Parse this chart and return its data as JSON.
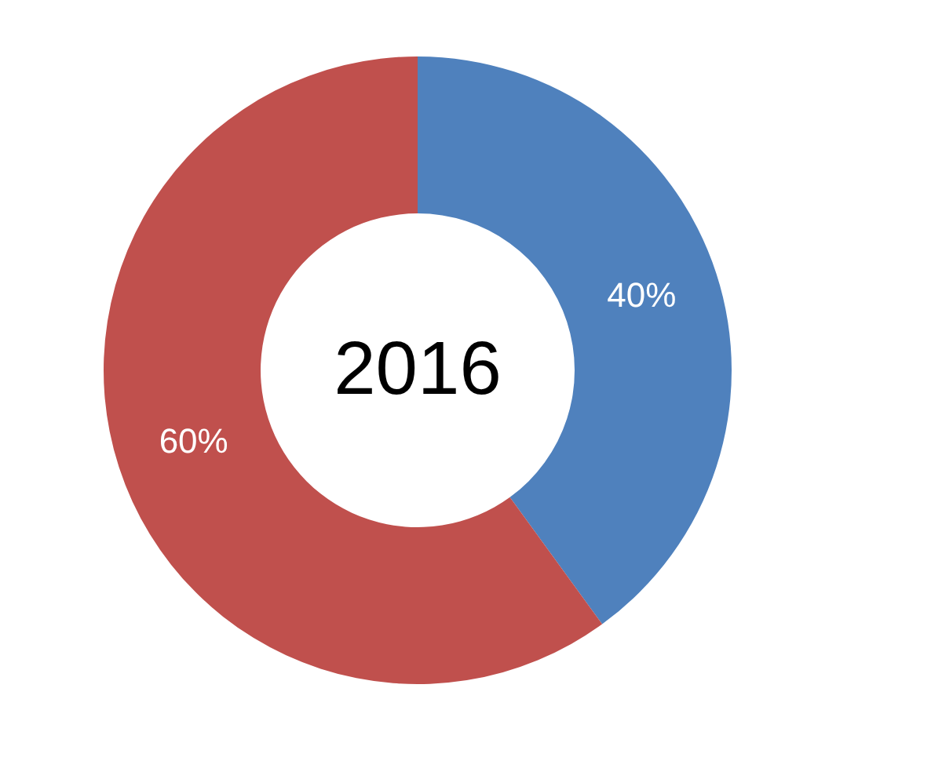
{
  "chart_data": {
    "type": "donut",
    "title": "2016",
    "categories": [
      null,
      null
    ],
    "values": [
      40,
      60
    ],
    "colors": [
      "#4f81bd",
      "#c0504d"
    ],
    "value_labels": [
      "40%",
      "60%"
    ],
    "legend": false
  }
}
